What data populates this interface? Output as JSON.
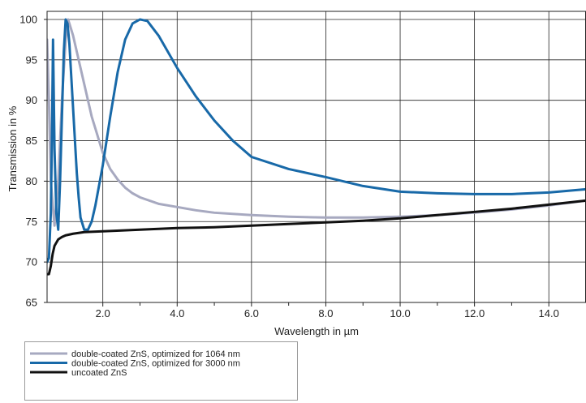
{
  "chart_data": {
    "type": "line",
    "title": "",
    "xlabel": "Wavelength in µm",
    "ylabel": "Transmission in %",
    "xlim": [
      0.5,
      15
    ],
    "ylim": [
      65,
      101
    ],
    "x_ticks": [
      2,
      4,
      6,
      8,
      10,
      12,
      14
    ],
    "x_tick_labels": [
      "2.0",
      "4.0",
      "6.0",
      "8.0",
      "10.0",
      "12.0",
      "14.0"
    ],
    "y_ticks": [
      65,
      70,
      75,
      80,
      85,
      90,
      95,
      100
    ],
    "y_tick_labels": [
      "65",
      "70",
      "75",
      "80",
      "85",
      "90",
      "95",
      "100"
    ],
    "x_grid": [
      2,
      4,
      6,
      8,
      10,
      12,
      14
    ],
    "x_minor_ticks": [
      3,
      5,
      7,
      9,
      11,
      13
    ],
    "grid": true,
    "legend_position": "bottom-left",
    "series": [
      {
        "name": "double-coated ZnS, optimized for 1064 nm",
        "color": "#a7a9c0",
        "x": [
          0.5,
          0.55,
          0.6,
          0.7,
          0.8,
          0.9,
          1.0,
          1.064,
          1.1,
          1.2,
          1.3,
          1.4,
          1.5,
          1.6,
          1.7,
          1.8,
          1.9,
          2.0,
          2.2,
          2.4,
          2.6,
          2.8,
          3.0,
          3.5,
          4.0,
          4.5,
          5.0,
          6.0,
          7.0,
          8.0,
          9.0,
          10.0,
          11.0,
          12.0,
          13.0,
          14.0,
          15.0
        ],
        "y": [
          97.5,
          90,
          80,
          74.5,
          80,
          90,
          97.5,
          100,
          99.5,
          98,
          96,
          94,
          92,
          90,
          88,
          86.5,
          85,
          83.5,
          81.5,
          80.2,
          79.2,
          78.5,
          78,
          77.2,
          76.8,
          76.4,
          76.1,
          75.8,
          75.6,
          75.5,
          75.5,
          75.6,
          75.8,
          76.1,
          76.5,
          77,
          77.6
        ]
      },
      {
        "name": "double-coated ZnS, optimized for 3000 nm",
        "color": "#1869a8",
        "x": [
          0.5,
          0.55,
          0.6,
          0.63,
          0.66,
          0.7,
          0.75,
          0.8,
          0.85,
          0.9,
          0.95,
          1.0,
          1.05,
          1.1,
          1.15,
          1.2,
          1.25,
          1.3,
          1.35,
          1.4,
          1.5,
          1.6,
          1.7,
          1.8,
          2.0,
          2.2,
          2.4,
          2.6,
          2.8,
          3.0,
          3.2,
          3.5,
          4.0,
          4.5,
          5.0,
          5.5,
          6.0,
          7.0,
          8.0,
          9.0,
          10.0,
          11.0,
          12.0,
          13.0,
          14.0,
          15.0
        ],
        "y": [
          70,
          70.5,
          76,
          85,
          97.5,
          84,
          76,
          74,
          80,
          88,
          96,
          100,
          99.5,
          97,
          93,
          89,
          85,
          81,
          78,
          75.5,
          74,
          74,
          75,
          77,
          82,
          88,
          93.5,
          97.5,
          99.5,
          100,
          99.8,
          98,
          94,
          90.5,
          87.5,
          85,
          83,
          81.5,
          80.5,
          79.4,
          78.7,
          78.5,
          78.4,
          78.4,
          78.6,
          79
        ]
      },
      {
        "name": "uncoated ZnS",
        "color": "#111111",
        "x": [
          0.5,
          0.55,
          0.6,
          0.65,
          0.7,
          0.8,
          0.9,
          1.0,
          1.2,
          1.5,
          2.0,
          3.0,
          4.0,
          5.0,
          6.0,
          7.0,
          8.0,
          9.0,
          10.0,
          11.0,
          12.0,
          13.0,
          14.0,
          15.0
        ],
        "y": [
          68.5,
          68.5,
          69.5,
          71,
          72,
          72.8,
          73.1,
          73.3,
          73.5,
          73.7,
          73.8,
          74,
          74.2,
          74.3,
          74.5,
          74.7,
          74.9,
          75.1,
          75.4,
          75.8,
          76.2,
          76.6,
          77.1,
          77.6
        ]
      }
    ]
  }
}
